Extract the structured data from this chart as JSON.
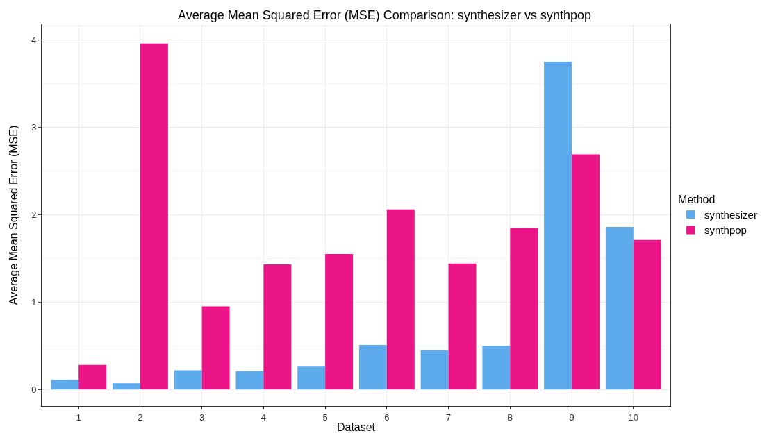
{
  "chart_data": {
    "type": "bar",
    "title": "Average Mean Squared Error (MSE) Comparison: synthesizer vs synthpop",
    "xlabel": "Dataset",
    "ylabel": "Average Mean Squared Error (MSE)",
    "legend_title": "Method",
    "categories": [
      "1",
      "2",
      "3",
      "4",
      "5",
      "6",
      "7",
      "8",
      "9",
      "10"
    ],
    "series": [
      {
        "name": "synthesizer",
        "color": "#5dabec",
        "values": [
          0.11,
          0.07,
          0.22,
          0.21,
          0.26,
          0.51,
          0.45,
          0.5,
          3.75,
          1.86
        ]
      },
      {
        "name": "synthpop",
        "color": "#ec1587",
        "values": [
          0.28,
          3.96,
          0.95,
          1.43,
          1.55,
          2.06,
          1.44,
          1.85,
          2.69,
          1.71
        ]
      }
    ],
    "ylim": [
      -0.19,
      4.18
    ],
    "yticks": [
      0,
      1,
      2,
      3,
      4
    ],
    "grid": true,
    "legend": "right"
  }
}
